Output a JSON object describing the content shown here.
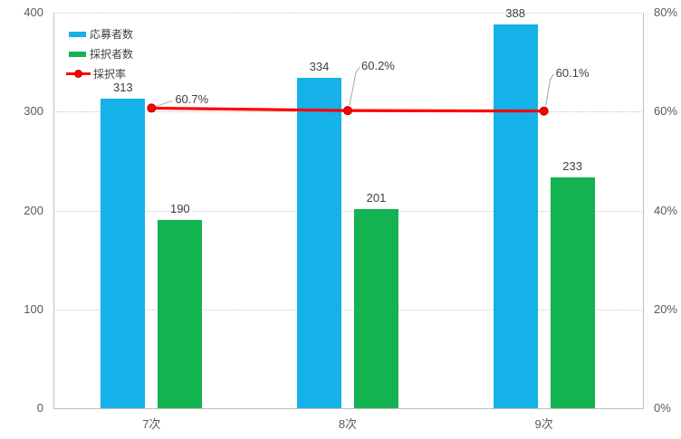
{
  "chart_data": {
    "type": "combo",
    "title": "",
    "categories": [
      "7次",
      "8次",
      "9次"
    ],
    "series": [
      {
        "name": "応募者数",
        "type": "bar",
        "axis": "left",
        "color": "#15b1e9",
        "values": [
          313,
          334,
          388
        ]
      },
      {
        "name": "採択者数",
        "type": "bar",
        "axis": "left",
        "color": "#12b350",
        "values": [
          190,
          201,
          233
        ]
      },
      {
        "name": "採択率",
        "type": "line",
        "axis": "right",
        "color": "#ff0000",
        "values": [
          60.7,
          60.2,
          60.1
        ],
        "point_labels": [
          "60.7%",
          "60.2%",
          "60.1%"
        ]
      }
    ],
    "axes": {
      "left": {
        "min": 0,
        "max": 400,
        "tick_step": 100,
        "tick_labels": [
          "0",
          "100",
          "200",
          "300",
          "400"
        ]
      },
      "right": {
        "min": 0,
        "max": 80,
        "tick_step": 20,
        "tick_labels": [
          "0%",
          "20%",
          "40%",
          "60%",
          "80%"
        ]
      }
    },
    "legend": {
      "position": "top-left-inside",
      "entries": [
        "応募者数",
        "採択者数",
        "採択率"
      ]
    },
    "grid": true,
    "colors": {
      "gridline": "#c9c9c9",
      "axis_border": "#bfbfbf",
      "axis_text": "#595959",
      "data_label_text": "#404040",
      "leader_line": "#a6a6a6"
    }
  }
}
